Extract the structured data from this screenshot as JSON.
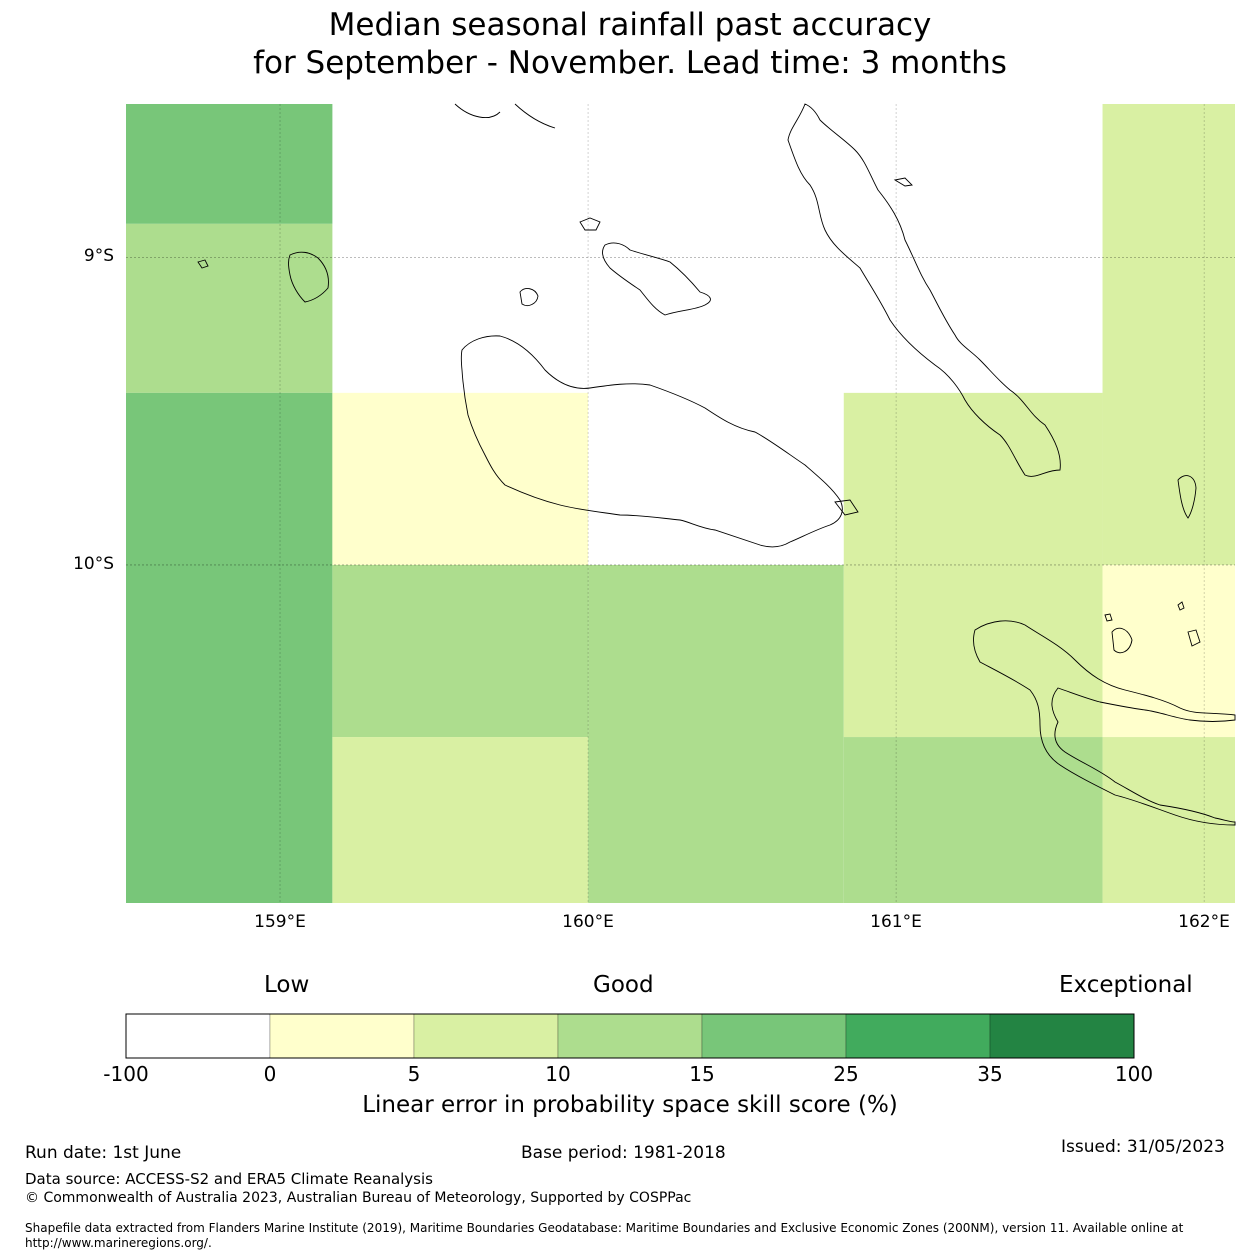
{
  "title_line1": "Median seasonal rainfall past accuracy",
  "title_line2": "for September - November. Lead time: 3 months",
  "map": {
    "lat_labels": [
      "9°S",
      "10°S"
    ],
    "lon_labels": [
      "159°E",
      "160°E",
      "161°E",
      "162°E"
    ],
    "cells": [
      {
        "lon0": 158.5,
        "lon1": 159.17,
        "lat0": 8.5,
        "lat1": 8.89,
        "category": "15-25"
      },
      {
        "lon0": 158.5,
        "lon1": 159.17,
        "lat0": 8.89,
        "lat1": 9.44,
        "category": "10-15"
      },
      {
        "lon0": 158.5,
        "lon1": 159.17,
        "lat0": 9.44,
        "lat1": 11.1,
        "category": "15-25"
      },
      {
        "lon0": 159.17,
        "lon1": 160.0,
        "lat0": 9.44,
        "lat1": 10.0,
        "category": "0-5"
      },
      {
        "lon0": 159.17,
        "lon1": 160.0,
        "lat0": 10.0,
        "lat1": 10.56,
        "category": "10-15"
      },
      {
        "lon0": 159.17,
        "lon1": 160.0,
        "lat0": 10.56,
        "lat1": 11.1,
        "category": "5-10"
      },
      {
        "lon0": 160.0,
        "lon1": 160.83,
        "lat0": 10.0,
        "lat1": 11.1,
        "category": "10-15"
      },
      {
        "lon0": 160.83,
        "lon1": 161.67,
        "lat0": 9.44,
        "lat1": 10.56,
        "category": "5-10"
      },
      {
        "lon0": 160.83,
        "lon1": 161.67,
        "lat0": 10.56,
        "lat1": 11.1,
        "category": "10-15"
      },
      {
        "lon0": 161.67,
        "lon1": 162.1,
        "lat0": 8.5,
        "lat1": 10.0,
        "category": "5-10"
      },
      {
        "lon0": 161.67,
        "lon1": 162.1,
        "lat0": 10.0,
        "lat1": 10.56,
        "category": "0-5"
      },
      {
        "lon0": 161.67,
        "lon1": 162.1,
        "lat0": 10.56,
        "lat1": 11.1,
        "category": "5-10"
      }
    ]
  },
  "colorbar": {
    "categories": [
      "Low",
      "Good",
      "Exceptional"
    ],
    "ticks": [
      "-100",
      "0",
      "5",
      "10",
      "15",
      "25",
      "35",
      "100"
    ],
    "colors": [
      "#ffffff",
      "#ffffcc",
      "#d9f0a3",
      "#addd8e",
      "#78c679",
      "#41ab5d",
      "#238443"
    ],
    "label": "Linear error in probability space skill score (%)"
  },
  "footer": {
    "run_date": "Run date: 1st June",
    "base_period": "Base period: 1981-2018",
    "issued": "Issued: 31/05/2023",
    "data_source": "Data source: ACCESS-S2 and ERA5 Climate Reanalysis",
    "copyright": "© Commonwealth of Australia 2023, Australian Bureau of Meteorology, Supported by COSPPac",
    "shapefile": "Shapefile data extracted from Flanders Marine Institute (2019), Maritime Boundaries Geodatabase: Maritime Boundaries and Exclusive Economic Zones (200NM), version 11. Available online at http://www.marineregions.org/."
  }
}
